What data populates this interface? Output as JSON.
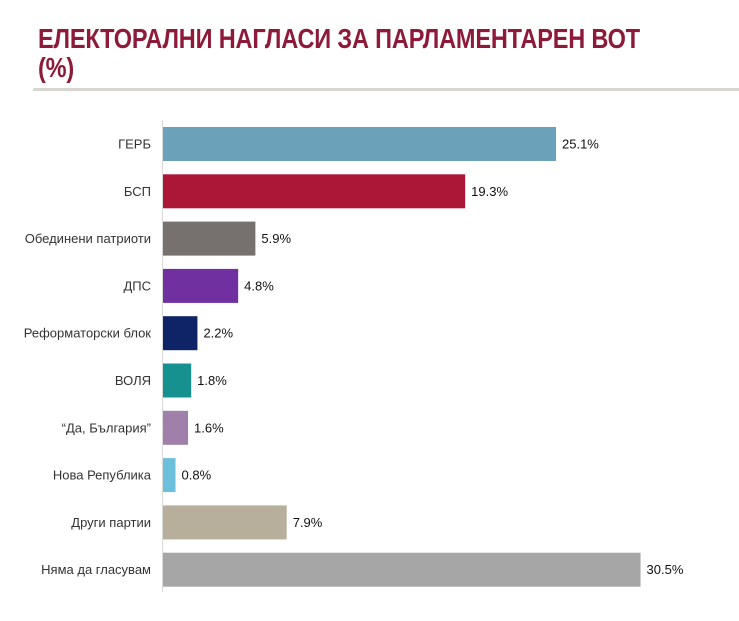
{
  "chart_data": {
    "type": "bar",
    "orientation": "horizontal",
    "title": "ЕЛЕКТОРАЛНИ НАГЛАСИ ЗА ПАРЛАМЕНТАРЕН ВОТ (%)",
    "xlabel": "",
    "ylabel": "",
    "xlim": [
      0,
      31
    ],
    "grid": false,
    "categories": [
      "ГЕРБ",
      "БСП",
      "Обединени патриоти",
      "ДПС",
      "Реформаторски блок",
      "ВОЛЯ",
      "“Да, България”",
      "Нова Република",
      "Други партии",
      "Няма да гласувам"
    ],
    "values": [
      25.1,
      19.3,
      5.9,
      4.8,
      2.2,
      1.8,
      1.6,
      0.8,
      7.9,
      30.5
    ],
    "data_labels": [
      "25.1%",
      "19.3%",
      "5.9%",
      "4.8%",
      "2.2%",
      "1.8%",
      "1.6%",
      "0.8%",
      "7.9%",
      "30.5%"
    ],
    "colors": [
      "#6ba2b9",
      "#ad1737",
      "#76706f",
      "#7130a0",
      "#0f2466",
      "#17918f",
      "#a17fab",
      "#6cc0dc",
      "#b8ae9c",
      "#a6a6a6"
    ],
    "title_color": "#8e1a3a"
  }
}
